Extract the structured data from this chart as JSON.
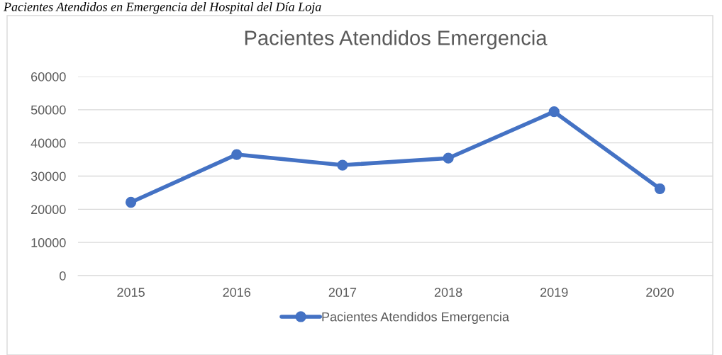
{
  "chart_data": {
    "type": "line",
    "title": "Pacientes Atendidos Emergencia",
    "annotations": [
      "Pacientes Atendidos en Emergencia del Hospital del Día Loja"
    ],
    "categories": [
      "2015",
      "2016",
      "2017",
      "2018",
      "2019",
      "2020"
    ],
    "series": [
      {
        "name": "Pacientes Atendidos Emergencia",
        "color": "#4472c4",
        "values": [
          22100,
          36500,
          33300,
          35400,
          49400,
          26200
        ]
      }
    ],
    "ylim": [
      0,
      60000
    ],
    "yticks": [
      0,
      10000,
      20000,
      30000,
      40000,
      50000,
      60000
    ],
    "grid": "y",
    "legend": "bottom",
    "marker": "circle",
    "line_style": "solid"
  }
}
